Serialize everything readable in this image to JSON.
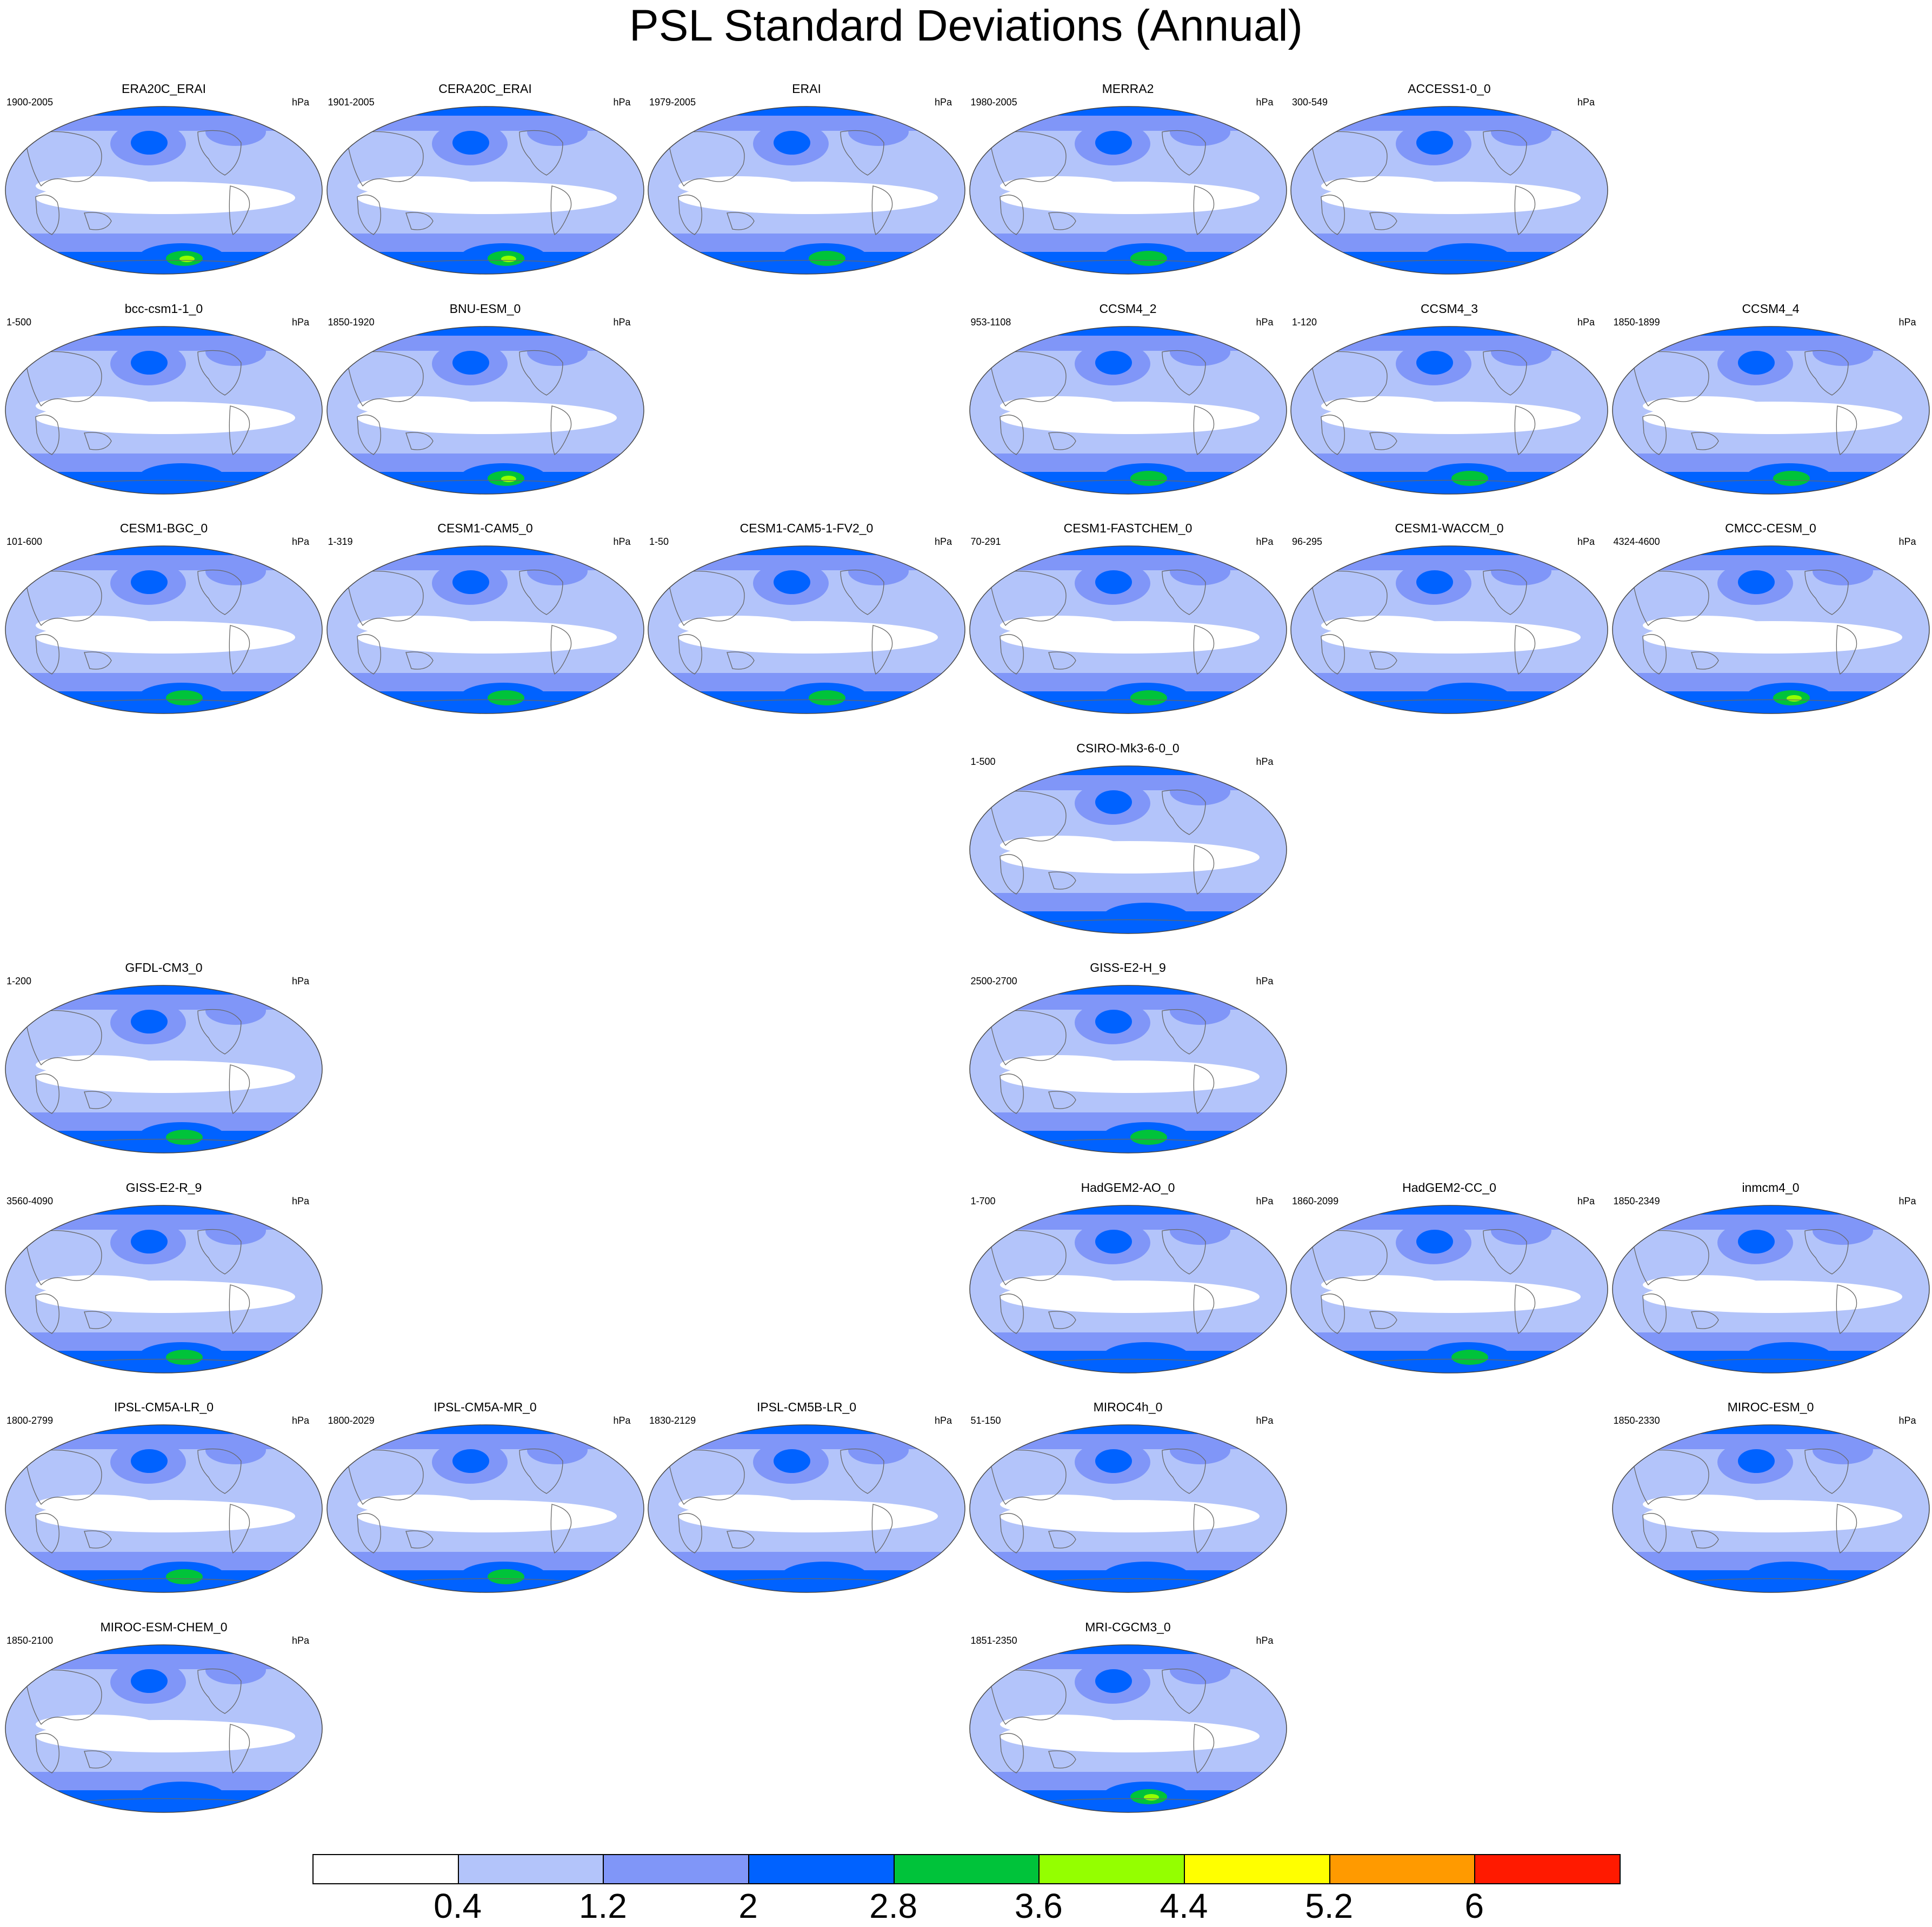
{
  "title": "PSL Standard Deviations (Annual)",
  "units": "hPa",
  "colorbar": {
    "colors": [
      "#ffffff",
      "#b3c4fa",
      "#8096f8",
      "#0062ff",
      "#00c33a",
      "#94ff00",
      "#ffff00",
      "#ff9a00",
      "#ff1a00"
    ],
    "labels": [
      "0.4",
      "1.2",
      "2",
      "2.8",
      "3.6",
      "4.4",
      "5.2",
      "6"
    ]
  },
  "panels": [
    {
      "name": "ERA20C_ERAI",
      "years": "1900-2005",
      "row": 0,
      "col": 0,
      "peak": 6
    },
    {
      "name": "CERA20C_ERAI",
      "years": "1901-2005",
      "row": 0,
      "col": 1,
      "peak": 6
    },
    {
      "name": "ERAI",
      "years": "1979-2005",
      "row": 0,
      "col": 2,
      "peak": 5
    },
    {
      "name": "MERRA2",
      "years": "1980-2005",
      "row": 0,
      "col": 3,
      "peak": 5
    },
    {
      "name": "ACCESS1-0_0",
      "years": "300-549",
      "row": 0,
      "col": 4,
      "peak": 4
    },
    {
      "name": "bcc-csm1-1_0",
      "years": "1-500",
      "row": 1,
      "col": 0,
      "peak": 4
    },
    {
      "name": "BNU-ESM_0",
      "years": "1850-1920",
      "row": 1,
      "col": 1,
      "peak": 6
    },
    {
      "name": "CCSM4_2",
      "years": "953-1108",
      "row": 1,
      "col": 3,
      "peak": 5
    },
    {
      "name": "CCSM4_3",
      "years": "1-120",
      "row": 1,
      "col": 4,
      "peak": 5
    },
    {
      "name": "CCSM4_4",
      "years": "1850-1899",
      "row": 1,
      "col": 5,
      "peak": 5
    },
    {
      "name": "CESM1-BGC_0",
      "years": "101-600",
      "row": 2,
      "col": 0,
      "peak": 5
    },
    {
      "name": "CESM1-CAM5_0",
      "years": "1-319",
      "row": 2,
      "col": 1,
      "peak": 5
    },
    {
      "name": "CESM1-CAM5-1-FV2_0",
      "years": "1-50",
      "row": 2,
      "col": 2,
      "peak": 5
    },
    {
      "name": "CESM1-FASTCHEM_0",
      "years": "70-291",
      "row": 2,
      "col": 3,
      "peak": 5
    },
    {
      "name": "CESM1-WACCM_0",
      "years": "96-295",
      "row": 2,
      "col": 4,
      "peak": 4
    },
    {
      "name": "CMCC-CESM_0",
      "years": "4324-4600",
      "row": 2,
      "col": 5,
      "peak": 6
    },
    {
      "name": "CSIRO-Mk3-6-0_0",
      "years": "1-500",
      "row": 3,
      "col": 3,
      "peak": 4
    },
    {
      "name": "GFDL-CM3_0",
      "years": "1-200",
      "row": 4,
      "col": 0,
      "peak": 5
    },
    {
      "name": "GISS-E2-H_9",
      "years": "2500-2700",
      "row": 4,
      "col": 3,
      "peak": 5
    },
    {
      "name": "GISS-E2-R_9",
      "years": "3560-4090",
      "row": 5,
      "col": 0,
      "peak": 5
    },
    {
      "name": "HadGEM2-AO_0",
      "years": "1-700",
      "row": 5,
      "col": 3,
      "peak": 4
    },
    {
      "name": "HadGEM2-CC_0",
      "years": "1860-2099",
      "row": 5,
      "col": 4,
      "peak": 5
    },
    {
      "name": "inmcm4_0",
      "years": "1850-2349",
      "row": 5,
      "col": 5,
      "peak": 4
    },
    {
      "name": "IPSL-CM5A-LR_0",
      "years": "1800-2799",
      "row": 6,
      "col": 0,
      "peak": 5
    },
    {
      "name": "IPSL-CM5A-MR_0",
      "years": "1800-2029",
      "row": 6,
      "col": 1,
      "peak": 5
    },
    {
      "name": "IPSL-CM5B-LR_0",
      "years": "1830-2129",
      "row": 6,
      "col": 2,
      "peak": 4
    },
    {
      "name": "MIROC4h_0",
      "years": "51-150",
      "row": 6,
      "col": 3,
      "peak": 4
    },
    {
      "name": "MIROC-ESM_0",
      "years": "1850-2330",
      "row": 6,
      "col": 5,
      "peak": 4
    },
    {
      "name": "MIROC-ESM-CHEM_0",
      "years": "1850-2100",
      "row": 7,
      "col": 0,
      "peak": 4
    },
    {
      "name": "MRI-CGCM3_0",
      "years": "1851-2350",
      "row": 7,
      "col": 3,
      "peak": 6
    }
  ]
}
